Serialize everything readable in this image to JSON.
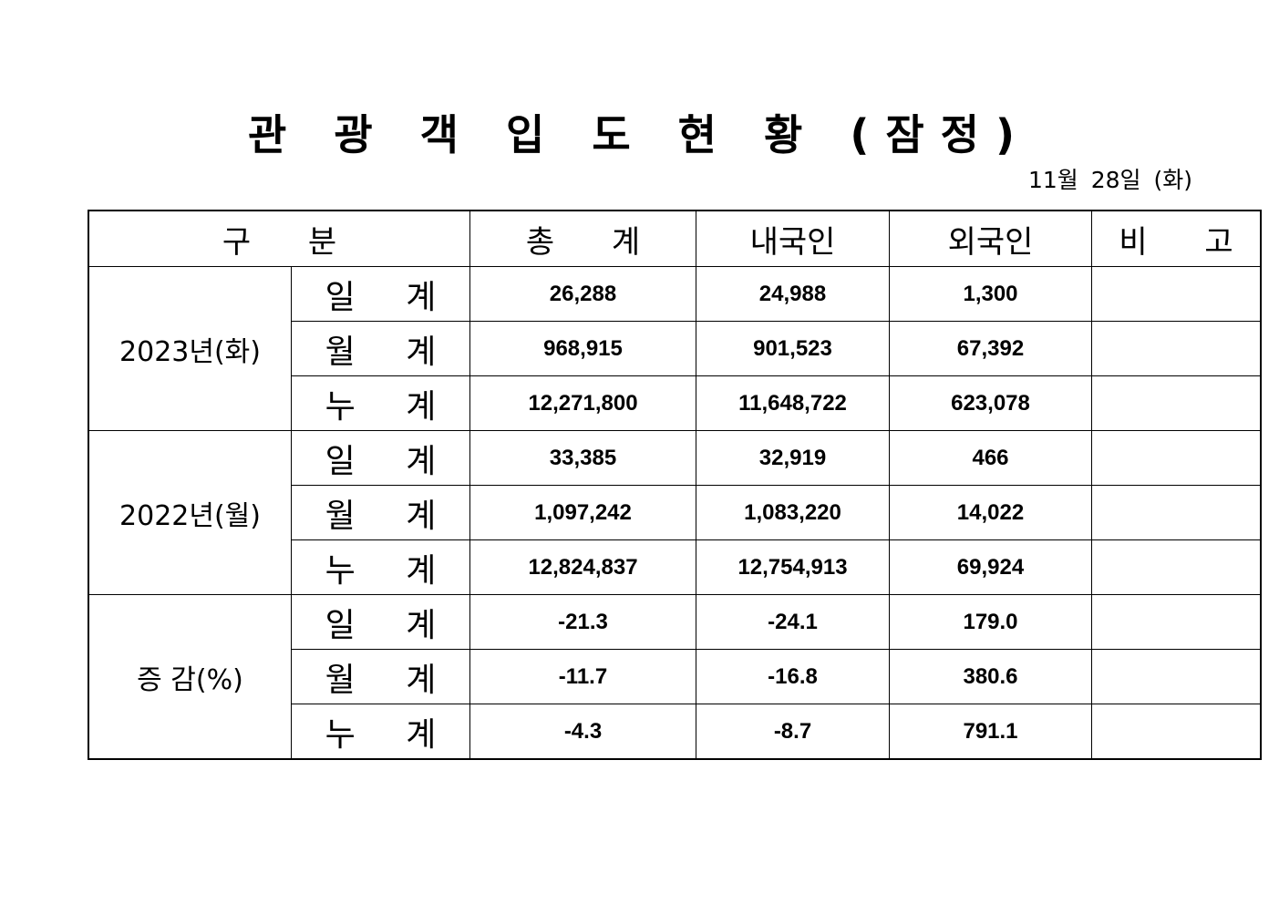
{
  "title": "관 광 객 입 도 현 황 (잠정)",
  "date": "11월 28일 (화)",
  "headers": [
    "구 분",
    "총 계",
    "내국인",
    "외국인",
    "비 고"
  ],
  "groups": [
    {
      "label": "2023년(화)",
      "rows": [
        {
          "label": "일 계",
          "total": "26,288",
          "domestic": "24,988",
          "foreign": "1,300",
          "note": ""
        },
        {
          "label": "월 계",
          "total": "968,915",
          "domestic": "901,523",
          "foreign": "67,392",
          "note": ""
        },
        {
          "label": "누 계",
          "total": "12,271,800",
          "domestic": "11,648,722",
          "foreign": "623,078",
          "note": ""
        }
      ]
    },
    {
      "label": "2022년(월)",
      "rows": [
        {
          "label": "일 계",
          "total": "33,385",
          "domestic": "32,919",
          "foreign": "466",
          "note": ""
        },
        {
          "label": "월 계",
          "total": "1,097,242",
          "domestic": "1,083,220",
          "foreign": "14,022",
          "note": ""
        },
        {
          "label": "누 계",
          "total": "12,824,837",
          "domestic": "12,754,913",
          "foreign": "69,924",
          "note": ""
        }
      ]
    },
    {
      "label": "증 감(%)",
      "rows": [
        {
          "label": "일 계",
          "total": "-21.3",
          "domestic": "-24.1",
          "foreign": "179.0",
          "note": ""
        },
        {
          "label": "월 계",
          "total": "-11.7",
          "domestic": "-16.8",
          "foreign": "380.6",
          "note": ""
        },
        {
          "label": "누 계",
          "total": "-4.3",
          "domestic": "-8.7",
          "foreign": "791.1",
          "note": ""
        }
      ]
    }
  ]
}
